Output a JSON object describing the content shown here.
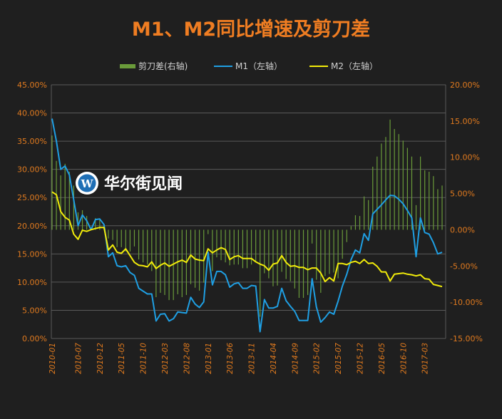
{
  "chart_data": {
    "type": "line",
    "title": "M1、M2同比增速及剪刀差",
    "legend": [
      "剪刀差(右轴)",
      "M1（左轴）",
      "M2（左轴）"
    ],
    "legend_position": "top",
    "grid": true,
    "left_axis": {
      "ticks": [
        "0.00%",
        "5.00%",
        "10.00%",
        "15.00%",
        "20.00%",
        "25.00%",
        "30.00%",
        "35.00%",
        "40.00%",
        "45.00%"
      ],
      "range": [
        0,
        45
      ]
    },
    "right_axis": {
      "ticks": [
        "-15.00%",
        "-10.00%",
        "-5.00%",
        "0.00%",
        "5.00%",
        "10.00%",
        "15.00%",
        "20.00%"
      ],
      "range": [
        -15,
        20
      ]
    },
    "x_ticks": [
      "2010-01",
      "2010-07",
      "2010-12",
      "2011-05",
      "2011-10",
      "2012-03",
      "2012-08",
      "2013-01",
      "2013-06",
      "2013-11",
      "2014-04",
      "2014-09",
      "2015-02",
      "2015-07",
      "2015-12",
      "2016-05",
      "2016-10",
      "2017-03"
    ],
    "x_start": "2010-01",
    "x_end": "2017-07",
    "series": [
      {
        "name": "M1（左轴）",
        "axis": "left",
        "color": "#1f9fe3",
        "values": [
          39.0,
          35.0,
          30.0,
          30.6,
          29.0,
          24.6,
          20.0,
          21.9,
          20.9,
          19.3,
          21.1,
          21.2,
          20.2,
          14.5,
          15.2,
          12.9,
          12.7,
          12.9,
          11.7,
          11.2,
          8.9,
          8.4,
          7.9,
          7.9,
          3.1,
          4.3,
          4.4,
          3.1,
          3.5,
          4.7,
          4.6,
          4.5,
          7.3,
          6.1,
          5.5,
          6.5,
          15.3,
          9.5,
          11.9,
          11.9,
          11.3,
          9.1,
          9.7,
          9.9,
          8.9,
          8.9,
          9.4,
          9.3,
          1.2,
          6.9,
          5.4,
          5.4,
          5.7,
          8.9,
          6.7,
          5.7,
          4.8,
          3.2,
          3.2,
          3.2,
          10.6,
          5.6,
          2.9,
          3.7,
          4.7,
          4.3,
          6.6,
          9.3,
          11.4,
          14.0,
          15.7,
          15.2,
          18.6,
          17.4,
          22.1,
          22.9,
          23.7,
          24.6,
          25.4,
          25.3,
          24.7,
          23.9,
          22.7,
          21.4,
          14.5,
          21.4,
          18.8,
          18.5,
          17.0,
          15.0,
          15.3
        ]
      },
      {
        "name": "M2（左轴）",
        "axis": "left",
        "color": "#f2ec0a",
        "values": [
          26.0,
          25.5,
          22.5,
          21.5,
          21.0,
          18.5,
          17.6,
          19.2,
          19.0,
          19.3,
          19.5,
          19.7,
          19.7,
          15.7,
          16.6,
          15.3,
          15.1,
          15.9,
          14.7,
          13.5,
          13.0,
          12.9,
          12.7,
          13.6,
          12.4,
          13.0,
          13.4,
          12.8,
          13.2,
          13.6,
          13.9,
          13.5,
          14.8,
          14.1,
          13.9,
          13.8,
          15.9,
          15.2,
          15.7,
          16.1,
          15.8,
          14.0,
          14.5,
          14.7,
          14.2,
          14.2,
          14.2,
          13.6,
          13.2,
          12.9,
          12.1,
          13.2,
          13.4,
          14.7,
          13.5,
          12.8,
          12.9,
          12.6,
          12.6,
          12.2,
          12.5,
          12.5,
          11.6,
          10.1,
          10.8,
          10.2,
          13.3,
          13.3,
          13.1,
          13.5,
          13.7,
          13.3,
          14.0,
          13.3,
          13.4,
          12.8,
          11.8,
          11.8,
          10.2,
          11.4,
          11.5,
          11.6,
          11.4,
          11.3,
          11.1,
          11.3,
          10.6,
          10.5,
          9.6,
          9.4,
          9.2
        ]
      },
      {
        "name": "剪刀差(右轴)",
        "axis": "right",
        "color": "#6a9b3a",
        "values": [
          13.0,
          9.5,
          7.5,
          9.1,
          8.0,
          6.1,
          2.4,
          2.7,
          1.9,
          0.0,
          1.6,
          1.5,
          0.5,
          -1.2,
          -1.4,
          -2.4,
          -2.4,
          -3.0,
          -3.0,
          -2.3,
          -4.1,
          -4.5,
          -4.8,
          -5.7,
          -9.3,
          -8.7,
          -9.0,
          -9.7,
          -9.7,
          -8.9,
          -9.3,
          -9.0,
          -7.5,
          -8.0,
          -8.4,
          -7.3,
          -0.6,
          -5.7,
          -3.8,
          -4.2,
          -4.5,
          -4.9,
          -4.8,
          -4.8,
          -5.3,
          -5.3,
          -4.8,
          -4.3,
          -12.0,
          -6.0,
          -6.7,
          -7.8,
          -7.7,
          -5.8,
          -6.8,
          -7.1,
          -8.1,
          -9.4,
          -9.4,
          -9.0,
          -1.9,
          -6.9,
          -8.7,
          -6.4,
          -6.1,
          -5.9,
          -6.7,
          -4.0,
          -1.7,
          0.5,
          2.0,
          1.9,
          4.6,
          4.1,
          8.7,
          10.1,
          11.9,
          12.8,
          15.2,
          13.9,
          13.2,
          12.3,
          11.3,
          10.1,
          3.4,
          10.1,
          8.2,
          8.0,
          7.4,
          5.6,
          6.1
        ]
      }
    ]
  },
  "watermark": {
    "text": "华尔街见闻"
  },
  "colors": {
    "background": "#1f1f1f",
    "title": "#ef7d22",
    "grid": "#5a5a5a",
    "tick": "#e07a1f"
  }
}
